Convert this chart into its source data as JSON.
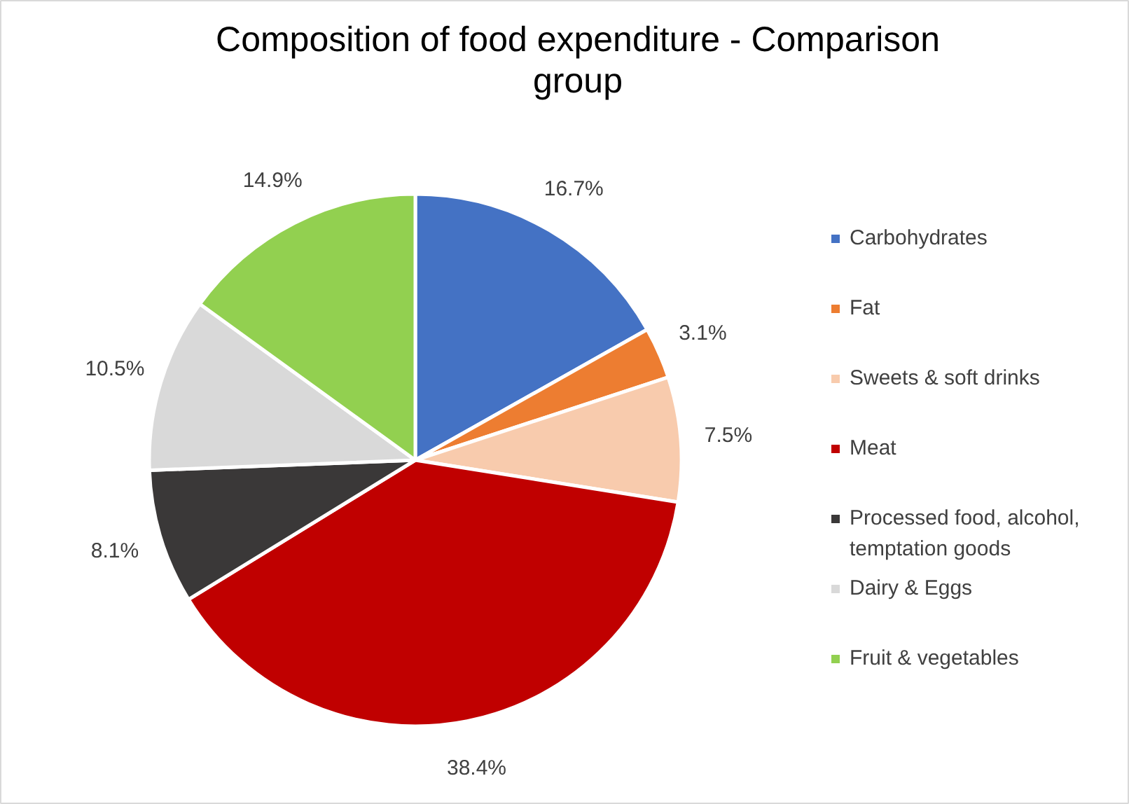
{
  "chart_data": {
    "type": "pie",
    "title": "Composition of food expenditure - Comparison group",
    "categories": [
      "Carbohydrates",
      "Fat",
      "Sweets & soft drinks",
      "Meat",
      "Processed food, alcohol, temptation goods",
      "Dairy & Eggs",
      "Fruit & vegetables"
    ],
    "values": [
      16.7,
      3.1,
      7.5,
      38.4,
      8.1,
      10.5,
      14.9
    ],
    "value_labels": [
      "16.7%",
      "3.1%",
      "7.5%",
      "38.4%",
      "8.1%",
      "10.5%",
      "14.9%"
    ],
    "colors": [
      "#4472c4",
      "#ed7d31",
      "#f8cbad",
      "#c00000",
      "#3a3838",
      "#d9d9d9",
      "#92d050"
    ],
    "legend": "right"
  }
}
